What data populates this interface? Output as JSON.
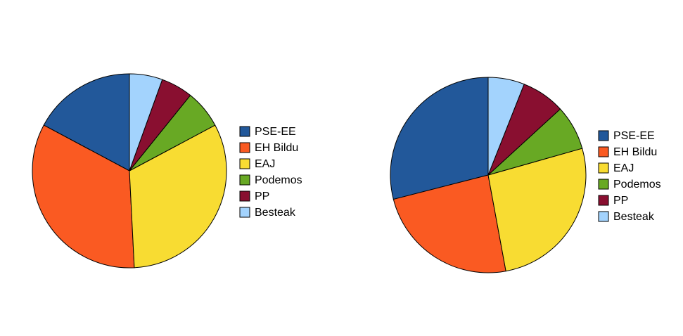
{
  "chart_data": [
    {
      "type": "pie",
      "categories": [
        "PSE-EE",
        "EH Bildu",
        "EAJ",
        "Podemos",
        "PP",
        "Besteak"
      ],
      "values": [
        17.2,
        33.6,
        32.0,
        6.4,
        5.3,
        5.5
      ],
      "colors": [
        "#22589a",
        "#fa5a22",
        "#f8dc32",
        "#68a924",
        "#890f30",
        "#a3d3fd"
      ]
    },
    {
      "type": "pie",
      "categories": [
        "PSE-EE",
        "EH Bildu",
        "EAJ",
        "Podemos",
        "PP",
        "Besteak"
      ],
      "values": [
        29.0,
        23.9,
        26.5,
        7.4,
        7.2,
        6.0
      ],
      "colors": [
        "#22589a",
        "#fa5a22",
        "#f8dc32",
        "#68a924",
        "#890f30",
        "#a3d3fd"
      ]
    }
  ]
}
